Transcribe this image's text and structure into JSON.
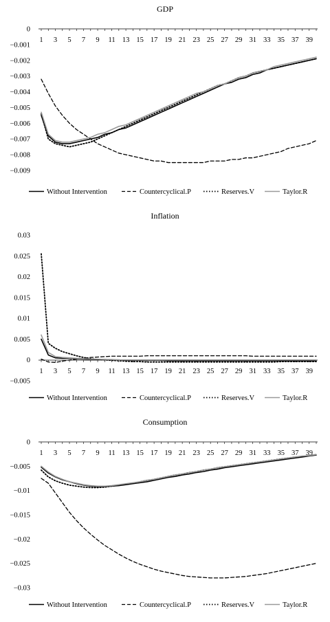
{
  "colors": {
    "without": "#000000",
    "countercyclical": "#000000",
    "reserves": "#000000",
    "taylor": "#999999"
  },
  "chart_data": [
    {
      "type": "line",
      "title": "GDP",
      "x": [
        1,
        2,
        3,
        4,
        5,
        6,
        7,
        8,
        9,
        10,
        11,
        12,
        13,
        14,
        15,
        16,
        17,
        18,
        19,
        20,
        21,
        22,
        23,
        24,
        25,
        26,
        27,
        28,
        29,
        30,
        31,
        32,
        33,
        34,
        35,
        36,
        37,
        38,
        39,
        40
      ],
      "x_ticks": [
        1,
        3,
        5,
        7,
        9,
        11,
        13,
        15,
        17,
        19,
        21,
        23,
        25,
        27,
        29,
        31,
        33,
        35,
        37,
        39
      ],
      "y_ticks": [
        0,
        -0.001,
        -0.002,
        -0.003,
        -0.004,
        -0.005,
        -0.006,
        -0.007,
        -0.008,
        -0.009
      ],
      "y_tick_labels": [
        "0",
        "−0.001",
        "−0.002",
        "−0.003",
        "−0.004",
        "−0.005",
        "−0.006",
        "−0.007",
        "−0.008",
        "−0.009"
      ],
      "ylim": [
        -0.009,
        0
      ],
      "legend": "bottom",
      "series": [
        {
          "name": "Without Intervention",
          "style": "solid",
          "values": [
            -0.0055,
            -0.0068,
            -0.0072,
            -0.0073,
            -0.0073,
            -0.0072,
            -0.0071,
            -0.007,
            -0.0069,
            -0.0067,
            -0.0066,
            -0.0064,
            -0.0063,
            -0.0061,
            -0.0059,
            -0.0057,
            -0.0055,
            -0.0053,
            -0.0051,
            -0.0049,
            -0.0047,
            -0.0045,
            -0.0043,
            -0.0041,
            -0.0039,
            -0.0037,
            -0.0035,
            -0.0034,
            -0.0032,
            -0.0031,
            -0.0029,
            -0.0028,
            -0.0026,
            -0.0025,
            -0.0024,
            -0.0023,
            -0.0022,
            -0.0021,
            -0.002,
            -0.0019
          ]
        },
        {
          "name": "Countercyclical.P",
          "style": "dashed",
          "values": [
            -0.0032,
            -0.0041,
            -0.0049,
            -0.0055,
            -0.006,
            -0.0064,
            -0.0067,
            -0.007,
            -0.0073,
            -0.0075,
            -0.0077,
            -0.0079,
            -0.008,
            -0.0081,
            -0.0082,
            -0.0083,
            -0.0084,
            -0.0084,
            -0.0085,
            -0.0085,
            -0.0085,
            -0.0085,
            -0.0085,
            -0.0085,
            -0.0084,
            -0.0084,
            -0.0084,
            -0.0083,
            -0.0083,
            -0.0082,
            -0.0082,
            -0.0081,
            -0.008,
            -0.0079,
            -0.0078,
            -0.0076,
            -0.0075,
            -0.0074,
            -0.0073,
            -0.0071
          ]
        },
        {
          "name": "Reserves.V",
          "style": "dotted",
          "values": [
            -0.0054,
            -0.007,
            -0.0073,
            -0.0074,
            -0.0075,
            -0.0074,
            -0.0073,
            -0.0072,
            -0.007,
            -0.0068,
            -0.0066,
            -0.0064,
            -0.0062,
            -0.006,
            -0.0058,
            -0.0056,
            -0.0054,
            -0.0052,
            -0.005,
            -0.0048,
            -0.0046,
            -0.0044,
            -0.0042,
            -0.004,
            -0.0038,
            -0.0036,
            -0.0035,
            -0.0033,
            -0.0031,
            -0.003,
            -0.0028,
            -0.0027,
            -0.0026,
            -0.0025,
            -0.0024,
            -0.0023,
            -0.0022,
            -0.0021,
            -0.002,
            -0.0019
          ]
        },
        {
          "name": "Taylor.R",
          "style": "solid-gray",
          "values": [
            -0.0053,
            -0.0067,
            -0.0071,
            -0.0072,
            -0.0072,
            -0.0071,
            -0.007,
            -0.0069,
            -0.0067,
            -0.0066,
            -0.0064,
            -0.0062,
            -0.0061,
            -0.0059,
            -0.0057,
            -0.0055,
            -0.0053,
            -0.0051,
            -0.0049,
            -0.0047,
            -0.0045,
            -0.0043,
            -0.0041,
            -0.004,
            -0.0038,
            -0.0036,
            -0.0035,
            -0.0033,
            -0.0031,
            -0.003,
            -0.0028,
            -0.0027,
            -0.0026,
            -0.0024,
            -0.0023,
            -0.0022,
            -0.0021,
            -0.002,
            -0.0019,
            -0.0018
          ]
        }
      ]
    },
    {
      "type": "line",
      "title": "Inflation",
      "x": [
        1,
        2,
        3,
        4,
        5,
        6,
        7,
        8,
        9,
        10,
        11,
        12,
        13,
        14,
        15,
        16,
        17,
        18,
        19,
        20,
        21,
        22,
        23,
        24,
        25,
        26,
        27,
        28,
        29,
        30,
        31,
        32,
        33,
        34,
        35,
        36,
        37,
        38,
        39,
        40
      ],
      "x_ticks": [
        1,
        3,
        5,
        7,
        9,
        11,
        13,
        15,
        17,
        19,
        21,
        23,
        25,
        27,
        29,
        31,
        33,
        35,
        37,
        39
      ],
      "y_ticks": [
        0.03,
        0.025,
        0.02,
        0.015,
        0.01,
        0.005,
        0,
        -0.005
      ],
      "y_tick_labels": [
        "0.03",
        "0.025",
        "0.02",
        "0.015",
        "0.01",
        "0.005",
        "0",
        "−0.005"
      ],
      "ylim": [
        -0.005,
        0.03
      ],
      "legend": "bottom",
      "series": [
        {
          "name": "Without Intervention",
          "style": "solid",
          "values": [
            0.005,
            0.0012,
            0.0005,
            0.0004,
            0.0004,
            0.0003,
            0.0002,
            0.0001,
            0.0001,
            0.0001,
            0.0,
            0.0,
            -0.0001,
            -0.0001,
            -0.0001,
            -0.0001,
            -0.0001,
            -0.0001,
            -0.0002,
            -0.0002,
            -0.0002,
            -0.0002,
            -0.0002,
            -0.0002,
            -0.0002,
            -0.0002,
            -0.0002,
            -0.0002,
            -0.0002,
            -0.0002,
            -0.0002,
            -0.0002,
            -0.0002,
            -0.0002,
            -0.0002,
            -0.0002,
            -0.0002,
            -0.0002,
            -0.0002,
            -0.0002
          ]
        },
        {
          "name": "Countercyclical.P",
          "style": "dashed",
          "values": [
            0.0002,
            -0.0005,
            -0.0006,
            -0.0003,
            0.0,
            0.0002,
            0.0004,
            0.0006,
            0.0007,
            0.0008,
            0.0009,
            0.0009,
            0.0009,
            0.0009,
            0.0009,
            0.001,
            0.001,
            0.001,
            0.001,
            0.001,
            0.001,
            0.001,
            0.001,
            0.001,
            0.001,
            0.001,
            0.001,
            0.001,
            0.001,
            0.001,
            0.0009,
            0.0009,
            0.0009,
            0.0009,
            0.0009,
            0.0009,
            0.0009,
            0.0009,
            0.0009,
            0.0009
          ]
        },
        {
          "name": "Reserves.V",
          "style": "dotted",
          "values": [
            0.0255,
            0.004,
            0.0028,
            0.002,
            0.0015,
            0.001,
            0.0006,
            0.0003,
            0.0001,
            0.0,
            -0.0001,
            -0.0002,
            -0.0003,
            -0.0004,
            -0.0004,
            -0.0005,
            -0.0005,
            -0.0005,
            -0.0005,
            -0.0005,
            -0.0005,
            -0.0005,
            -0.0005,
            -0.0005,
            -0.0005,
            -0.0005,
            -0.0005,
            -0.0005,
            -0.0005,
            -0.0005,
            -0.0005,
            -0.0005,
            -0.0005,
            -0.0005,
            -0.0004,
            -0.0004,
            -0.0004,
            -0.0004,
            -0.0004,
            -0.0004
          ]
        },
        {
          "name": "Taylor.R",
          "style": "solid-gray",
          "values": [
            0.006,
            0.0018,
            0.0008,
            0.0006,
            0.0005,
            0.0004,
            0.0003,
            0.0002,
            0.0002,
            0.0001,
            0.0001,
            0.0,
            0.0,
            0.0,
            0.0,
            0.0,
            0.0,
            0.0,
            0.0,
            0.0,
            0.0,
            0.0,
            0.0,
            0.0,
            0.0,
            0.0,
            0.0,
            0.0,
            0.0,
            0.0,
            0.0,
            0.0,
            0.0,
            0.0,
            0.0,
            0.0,
            0.0,
            0.0,
            0.0,
            0.0
          ]
        }
      ]
    },
    {
      "type": "line",
      "title": "Consumption",
      "x": [
        1,
        2,
        3,
        4,
        5,
        6,
        7,
        8,
        9,
        10,
        11,
        12,
        13,
        14,
        15,
        16,
        17,
        18,
        19,
        20,
        21,
        22,
        23,
        24,
        25,
        26,
        27,
        28,
        29,
        30,
        31,
        32,
        33,
        34,
        35,
        36,
        37,
        38,
        39,
        40
      ],
      "x_ticks": [
        1,
        3,
        5,
        7,
        9,
        11,
        13,
        15,
        17,
        19,
        21,
        23,
        25,
        27,
        29,
        31,
        33,
        35,
        37,
        39
      ],
      "y_ticks": [
        0,
        -0.005,
        -0.01,
        -0.015,
        -0.02,
        -0.025,
        -0.03
      ],
      "y_tick_labels": [
        "0",
        "−0.005",
        "−0.01",
        "−0.015",
        "−0.02",
        "−0.025",
        "−0.03"
      ],
      "ylim": [
        -0.03,
        0
      ],
      "legend": "bottom",
      "series": [
        {
          "name": "Without Intervention",
          "style": "solid",
          "values": [
            -0.0052,
            -0.0064,
            -0.0072,
            -0.0078,
            -0.0082,
            -0.0086,
            -0.0089,
            -0.0091,
            -0.0092,
            -0.0092,
            -0.0091,
            -0.009,
            -0.0088,
            -0.0086,
            -0.0084,
            -0.0082,
            -0.0079,
            -0.0076,
            -0.0073,
            -0.0071,
            -0.0068,
            -0.0066,
            -0.0063,
            -0.0061,
            -0.0058,
            -0.0056,
            -0.0053,
            -0.0051,
            -0.0049,
            -0.0047,
            -0.0045,
            -0.0043,
            -0.0041,
            -0.0039,
            -0.0037,
            -0.0035,
            -0.0033,
            -0.0031,
            -0.0029,
            -0.0027
          ]
        },
        {
          "name": "Countercyclical.P",
          "style": "dashed",
          "values": [
            -0.0075,
            -0.0085,
            -0.0105,
            -0.0125,
            -0.0145,
            -0.0162,
            -0.0177,
            -0.019,
            -0.0202,
            -0.0213,
            -0.0222,
            -0.0231,
            -0.0239,
            -0.0246,
            -0.0252,
            -0.0257,
            -0.0262,
            -0.0266,
            -0.0269,
            -0.0272,
            -0.0275,
            -0.0277,
            -0.0278,
            -0.0279,
            -0.028,
            -0.028,
            -0.028,
            -0.0279,
            -0.0278,
            -0.0277,
            -0.0275,
            -0.0273,
            -0.0271,
            -0.0268,
            -0.0265,
            -0.0262,
            -0.0259,
            -0.0256,
            -0.0253,
            -0.025
          ]
        },
        {
          "name": "Reserves.V",
          "style": "dotted",
          "values": [
            -0.0058,
            -0.0072,
            -0.008,
            -0.0085,
            -0.0089,
            -0.0091,
            -0.0093,
            -0.0094,
            -0.0094,
            -0.0093,
            -0.0091,
            -0.0089,
            -0.0087,
            -0.0085,
            -0.0082,
            -0.0079,
            -0.0077,
            -0.0074,
            -0.0071,
            -0.0068,
            -0.0066,
            -0.0063,
            -0.0061,
            -0.0058,
            -0.0056,
            -0.0053,
            -0.0051,
            -0.0049,
            -0.0047,
            -0.0045,
            -0.0043,
            -0.0041,
            -0.0039,
            -0.0037,
            -0.0035,
            -0.0033,
            -0.0031,
            -0.003,
            -0.0028,
            -0.0026
          ]
        },
        {
          "name": "Taylor.R",
          "style": "solid-gray",
          "values": [
            -0.005,
            -0.0062,
            -0.0071,
            -0.0077,
            -0.0082,
            -0.0085,
            -0.0088,
            -0.009,
            -0.0091,
            -0.0091,
            -0.009,
            -0.0088,
            -0.0086,
            -0.0084,
            -0.0082,
            -0.0079,
            -0.0077,
            -0.0074,
            -0.0071,
            -0.0068,
            -0.0066,
            -0.0063,
            -0.0061,
            -0.0058,
            -0.0056,
            -0.0053,
            -0.0051,
            -0.0049,
            -0.0047,
            -0.0045,
            -0.0043,
            -0.0041,
            -0.0039,
            -0.0037,
            -0.0035,
            -0.0033,
            -0.0031,
            -0.0029,
            -0.0028,
            -0.0026
          ]
        }
      ]
    }
  ]
}
